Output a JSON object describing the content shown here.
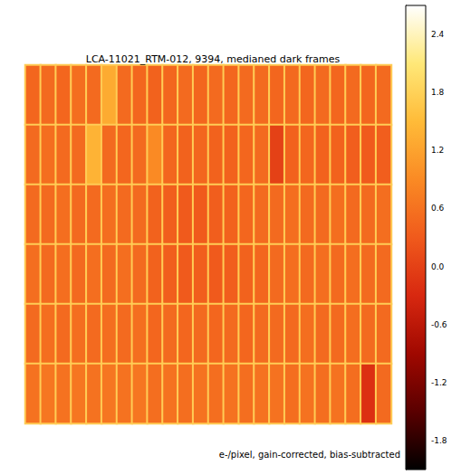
{
  "chart_data": {
    "type": "heatmap",
    "title": "LCA-11021_RTM-012, 9394, medianed dark frames",
    "annotations": [
      "e-/pixel, gain-corrected, bias-subtracted"
    ],
    "tick_labels": false,
    "cells": [
      [
        0.45,
        0.5,
        0.45,
        0.55,
        0.5,
        1.3,
        0.5,
        0.45,
        0.4,
        0.45,
        0.5,
        0.45,
        0.5,
        0.45,
        0.5,
        0.5,
        0.45,
        0.5,
        0.45,
        0.5,
        0.45,
        0.5,
        0.45,
        0.5
      ],
      [
        0.5,
        0.55,
        0.5,
        0.5,
        1.4,
        0.5,
        0.45,
        0.5,
        0.9,
        0.45,
        0.4,
        0.45,
        0.4,
        0.4,
        0.45,
        0.5,
        0.0,
        0.4,
        0.45,
        0.4,
        0.4,
        0.35,
        0.3,
        0.35
      ],
      [
        0.5,
        0.5,
        0.55,
        0.5,
        0.5,
        0.55,
        0.5,
        0.5,
        0.4,
        0.35,
        0.3,
        0.3,
        0.35,
        0.4,
        0.45,
        0.5,
        0.5,
        0.55,
        0.5,
        0.5,
        0.55,
        0.5,
        0.5,
        0.55
      ],
      [
        0.55,
        0.5,
        0.55,
        0.5,
        0.55,
        0.5,
        0.55,
        0.5,
        0.4,
        0.35,
        0.3,
        0.35,
        0.3,
        0.35,
        0.4,
        0.45,
        0.5,
        0.55,
        0.5,
        0.55,
        0.5,
        0.55,
        0.5,
        0.5
      ],
      [
        0.5,
        0.55,
        0.5,
        0.55,
        0.5,
        0.55,
        0.5,
        0.55,
        0.45,
        0.5,
        0.45,
        0.5,
        0.45,
        0.5,
        0.45,
        0.5,
        0.5,
        0.5,
        0.55,
        0.5,
        0.5,
        0.55,
        0.5,
        0.5
      ],
      [
        0.6,
        0.65,
        0.6,
        0.65,
        0.6,
        0.65,
        0.6,
        0.65,
        0.55,
        0.6,
        0.55,
        0.6,
        0.55,
        0.6,
        0.55,
        0.6,
        0.6,
        0.55,
        0.6,
        0.55,
        0.6,
        0.55,
        -0.2,
        0.5
      ]
    ],
    "colorbar_range": [
      -2.1,
      2.7
    ],
    "colorbar_ticks": [
      -1.8,
      -1.2,
      -0.6,
      {
        "value": 0,
        "label": "0.0"
      },
      0.6,
      1.2,
      1.8,
      2.4
    ]
  }
}
